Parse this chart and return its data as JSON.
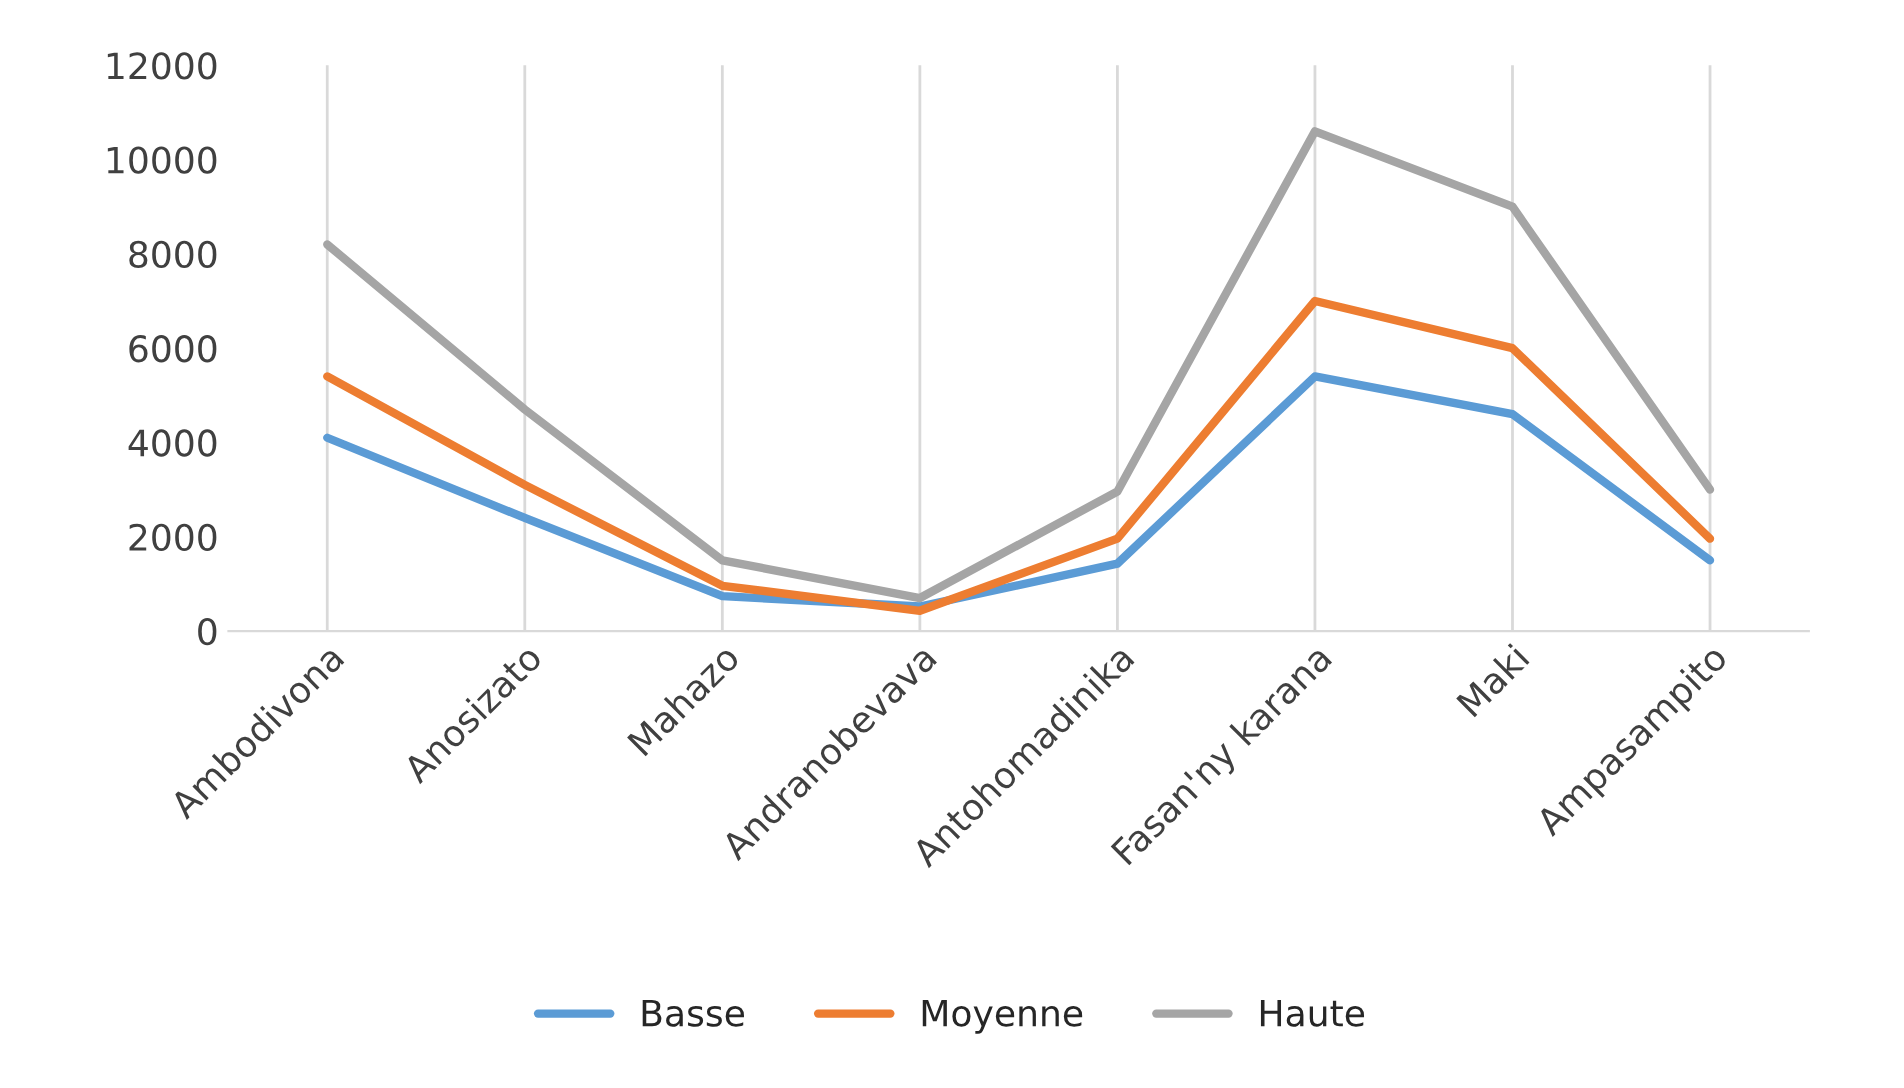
{
  "chart_data": {
    "type": "line",
    "categories": [
      "Ambodivona",
      "Anosizato",
      "Mahazo",
      "Andranobevava",
      "Antohomadinika",
      "Fasan'ny karana",
      "Maki",
      "Ampasampito"
    ],
    "series": [
      {
        "name": "Basse",
        "color": "#5b9bd5",
        "values": [
          4100,
          2400,
          740,
          520,
          1430,
          5400,
          4600,
          1500
        ]
      },
      {
        "name": "Moyenne",
        "color": "#ed7d31",
        "values": [
          5400,
          3100,
          960,
          430,
          1960,
          7000,
          6000,
          1960
        ]
      },
      {
        "name": "Haute",
        "color": "#a5a5a5",
        "values": [
          8200,
          4700,
          1500,
          700,
          2960,
          10600,
          9000,
          3000
        ]
      }
    ],
    "ylim": [
      0,
      12000
    ],
    "yticks": [
      0,
      2000,
      4000,
      6000,
      8000,
      10000,
      12000
    ],
    "grid": "x",
    "legend": "bottom",
    "marker": "none",
    "line_style": "solid"
  }
}
